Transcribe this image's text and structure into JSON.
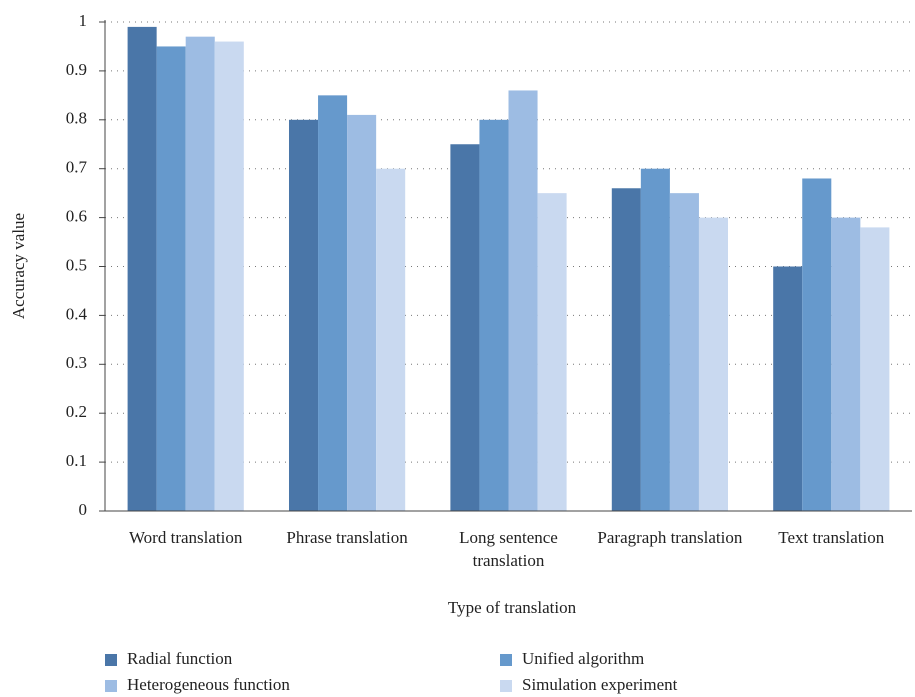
{
  "chart_data": {
    "type": "bar",
    "categories": [
      "Word translation",
      "Phrase translation",
      "Long sentence translation",
      "Paragraph translation",
      "Text translation"
    ],
    "series": [
      {
        "name": "Radial function",
        "color": "#4a76a8",
        "values": [
          0.99,
          0.8,
          0.75,
          0.66,
          0.5
        ]
      },
      {
        "name": "Unified algorithm",
        "color": "#6699cc",
        "values": [
          0.95,
          0.85,
          0.8,
          0.7,
          0.68
        ]
      },
      {
        "name": "Heterogeneous function",
        "color": "#9dbce3",
        "values": [
          0.97,
          0.81,
          0.86,
          0.65,
          0.6
        ]
      },
      {
        "name": "Simulation experiment",
        "color": "#c9d9f0",
        "values": [
          0.96,
          0.7,
          0.65,
          0.6,
          0.58
        ]
      }
    ],
    "x_label": "Type of translation",
    "y_label": "Accuracy value",
    "ylim": [
      0,
      1
    ],
    "yticks": [
      0,
      0.1,
      0.2,
      0.3,
      0.4,
      0.5,
      0.6,
      0.7,
      0.8,
      0.9,
      1
    ],
    "grid": true,
    "legend": "bottom"
  }
}
